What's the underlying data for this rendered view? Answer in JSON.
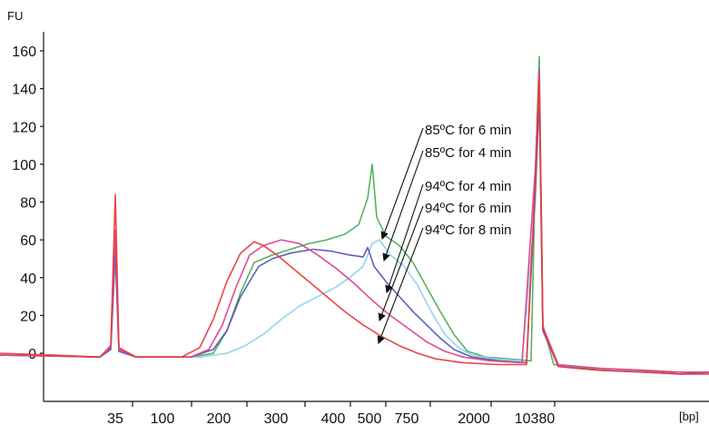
{
  "chart_data": {
    "type": "line",
    "ylabel": "FU",
    "xlabel": "[bp]",
    "ylim": [
      -25,
      165
    ],
    "xlim": [
      0,
      781
    ],
    "x_ticks": [
      {
        "label": "35",
        "x": 127
      },
      {
        "label": "100",
        "x": 179
      },
      {
        "label": "200",
        "x": 241
      },
      {
        "label": "300",
        "x": 304
      },
      {
        "label": "400",
        "x": 367
      },
      {
        "label": "500",
        "x": 407
      },
      {
        "label": "750",
        "x": 448
      },
      {
        "label": "2000",
        "x": 522
      },
      {
        "label": "10380",
        "x": 589
      }
    ],
    "y_ticks": [
      0,
      20,
      40,
      60,
      80,
      100,
      120,
      140,
      160
    ],
    "grid": false,
    "series": [
      {
        "name": "85ºC for 6 min",
        "color": "#4fae5a",
        "points": [
          [
            0,
            -1
          ],
          [
            60,
            -1.5
          ],
          [
            110,
            -2
          ],
          [
            122,
            3
          ],
          [
            127,
            58
          ],
          [
            131,
            2
          ],
          [
            150,
            -2
          ],
          [
            210,
            -2
          ],
          [
            235,
            0
          ],
          [
            250,
            12
          ],
          [
            265,
            32
          ],
          [
            280,
            48
          ],
          [
            300,
            52
          ],
          [
            320,
            55
          ],
          [
            340,
            58
          ],
          [
            360,
            60
          ],
          [
            380,
            63
          ],
          [
            395,
            68
          ],
          [
            405,
            82
          ],
          [
            410,
            100
          ],
          [
            415,
            72
          ],
          [
            425,
            62
          ],
          [
            440,
            57
          ],
          [
            455,
            48
          ],
          [
            470,
            35
          ],
          [
            485,
            22
          ],
          [
            500,
            10
          ],
          [
            515,
            1
          ],
          [
            535,
            -2
          ],
          [
            560,
            -3
          ],
          [
            585,
            -4
          ],
          [
            590,
            100
          ],
          [
            594,
            157
          ],
          [
            598,
            15
          ],
          [
            610,
            -6
          ],
          [
            650,
            -8
          ],
          [
            700,
            -9
          ],
          [
            740,
            -10
          ],
          [
            781,
            -10
          ]
        ]
      },
      {
        "name": "85ºC for 4 min",
        "color": "#8fd2ec",
        "points": [
          [
            0,
            -1
          ],
          [
            60,
            -1.5
          ],
          [
            110,
            -2
          ],
          [
            122,
            2
          ],
          [
            127,
            50
          ],
          [
            131,
            1
          ],
          [
            150,
            -2
          ],
          [
            220,
            -2
          ],
          [
            250,
            0
          ],
          [
            270,
            4
          ],
          [
            290,
            10
          ],
          [
            310,
            18
          ],
          [
            330,
            25
          ],
          [
            350,
            30
          ],
          [
            370,
            35
          ],
          [
            385,
            40
          ],
          [
            400,
            46
          ],
          [
            410,
            58
          ],
          [
            418,
            60
          ],
          [
            430,
            52
          ],
          [
            445,
            46
          ],
          [
            460,
            36
          ],
          [
            475,
            22
          ],
          [
            490,
            10
          ],
          [
            505,
            3
          ],
          [
            520,
            -1
          ],
          [
            545,
            -3
          ],
          [
            575,
            -4
          ],
          [
            590,
            80
          ],
          [
            594,
            140
          ],
          [
            598,
            12
          ],
          [
            615,
            -6
          ],
          [
            660,
            -8
          ],
          [
            710,
            -10
          ],
          [
            750,
            -11
          ],
          [
            781,
            -10
          ]
        ]
      },
      {
        "name": "94ºC for 4 min",
        "color": "#5a55b8",
        "points": [
          [
            0,
            -1
          ],
          [
            60,
            -1.5
          ],
          [
            110,
            -2
          ],
          [
            122,
            2
          ],
          [
            127,
            55
          ],
          [
            131,
            1
          ],
          [
            150,
            -2
          ],
          [
            210,
            -2
          ],
          [
            235,
            2
          ],
          [
            250,
            12
          ],
          [
            265,
            30
          ],
          [
            285,
            46
          ],
          [
            300,
            50
          ],
          [
            320,
            53
          ],
          [
            345,
            55
          ],
          [
            365,
            54
          ],
          [
            385,
            52
          ],
          [
            400,
            51
          ],
          [
            405,
            56
          ],
          [
            412,
            46
          ],
          [
            425,
            38
          ],
          [
            440,
            30
          ],
          [
            455,
            22
          ],
          [
            470,
            15
          ],
          [
            485,
            8
          ],
          [
            500,
            2
          ],
          [
            520,
            -2
          ],
          [
            550,
            -4
          ],
          [
            580,
            -5
          ],
          [
            590,
            90
          ],
          [
            594,
            135
          ],
          [
            598,
            12
          ],
          [
            615,
            -7
          ],
          [
            660,
            -9
          ],
          [
            710,
            -10
          ],
          [
            750,
            -11
          ],
          [
            781,
            -10
          ]
        ]
      },
      {
        "name": "94ºC for 6 min",
        "color": "#e0418f",
        "points": [
          [
            0,
            -1
          ],
          [
            60,
            -1.5
          ],
          [
            110,
            -2
          ],
          [
            122,
            3
          ],
          [
            127,
            65
          ],
          [
            131,
            2
          ],
          [
            150,
            -2
          ],
          [
            210,
            -2
          ],
          [
            230,
            2
          ],
          [
            245,
            15
          ],
          [
            260,
            35
          ],
          [
            275,
            52
          ],
          [
            290,
            57
          ],
          [
            310,
            60
          ],
          [
            330,
            58
          ],
          [
            350,
            52
          ],
          [
            370,
            45
          ],
          [
            390,
            37
          ],
          [
            410,
            28
          ],
          [
            430,
            20
          ],
          [
            450,
            13
          ],
          [
            470,
            6
          ],
          [
            490,
            1
          ],
          [
            510,
            -2
          ],
          [
            540,
            -4
          ],
          [
            575,
            -5
          ],
          [
            590,
            100
          ],
          [
            594,
            150
          ],
          [
            598,
            14
          ],
          [
            615,
            -6
          ],
          [
            660,
            -8
          ],
          [
            710,
            -9
          ],
          [
            750,
            -10
          ],
          [
            781,
            -10
          ]
        ]
      },
      {
        "name": "94ºC for 8 min",
        "color": "#e83d3a",
        "points": [
          [
            0,
            0
          ],
          [
            60,
            -1
          ],
          [
            110,
            -2
          ],
          [
            122,
            4
          ],
          [
            127,
            84
          ],
          [
            131,
            3
          ],
          [
            150,
            -2
          ],
          [
            200,
            -2
          ],
          [
            220,
            3
          ],
          [
            235,
            18
          ],
          [
            250,
            38
          ],
          [
            265,
            53
          ],
          [
            280,
            59
          ],
          [
            290,
            57
          ],
          [
            305,
            52
          ],
          [
            320,
            46
          ],
          [
            340,
            38
          ],
          [
            360,
            30
          ],
          [
            380,
            22
          ],
          [
            400,
            15
          ],
          [
            420,
            9
          ],
          [
            440,
            4
          ],
          [
            460,
            0
          ],
          [
            480,
            -3
          ],
          [
            510,
            -5
          ],
          [
            550,
            -6
          ],
          [
            580,
            -6
          ],
          [
            590,
            95
          ],
          [
            594,
            145
          ],
          [
            598,
            13
          ],
          [
            615,
            -7
          ],
          [
            660,
            -9
          ],
          [
            710,
            -10
          ],
          [
            750,
            -11
          ],
          [
            781,
            -11
          ]
        ]
      }
    ],
    "annotations": [
      {
        "label": "85ºC for 6 min",
        "target_series": "85ºC for 6 min"
      },
      {
        "label": "85ºC for 4 min",
        "target_series": "85ºC for 4 min"
      },
      {
        "label": "94ºC for 4 min",
        "target_series": "94ºC for 4 min"
      },
      {
        "label": "94ºC for 6 min",
        "target_series": "94ºC for 6 min"
      },
      {
        "label": "94ºC for 8 min",
        "target_series": "94ºC for 8 min"
      }
    ]
  }
}
